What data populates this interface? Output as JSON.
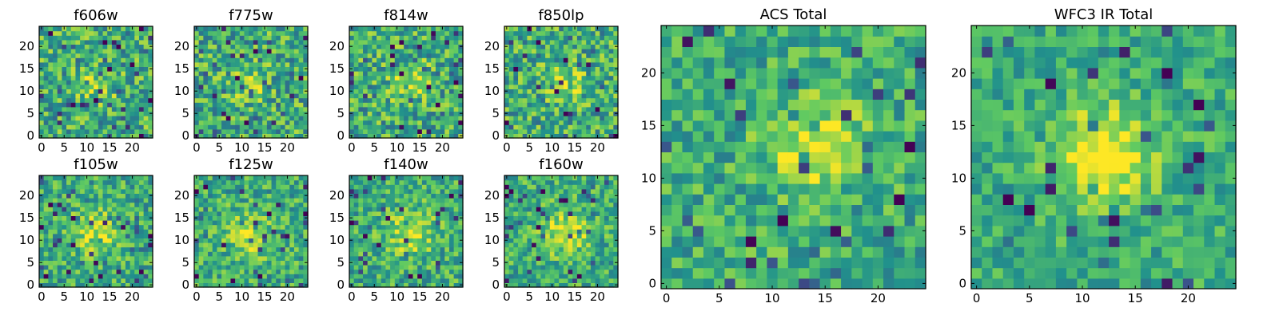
{
  "figure": {
    "description_free": true
  },
  "colormap": {
    "name": "viridis",
    "stops": [
      "#440154",
      "#3b528b",
      "#21918c",
      "#5ec962",
      "#fde725"
    ]
  },
  "chart_data": [
    {
      "type": "heatmap",
      "title": "f606w",
      "grid": [
        25,
        25
      ],
      "seed": 11,
      "peak": [
        12,
        11
      ],
      "peak_strength": 0.22,
      "peak_sigma": 3.0,
      "noise": 0.55,
      "xlim": [
        0,
        24
      ],
      "ylim": [
        0,
        24
      ],
      "xticks": [
        "0",
        "5",
        "10",
        "15",
        "20"
      ],
      "yticks": [
        "0",
        "5",
        "10",
        "15",
        "20"
      ]
    },
    {
      "type": "heatmap",
      "title": "f775w",
      "grid": [
        25,
        25
      ],
      "seed": 23,
      "peak": [
        12,
        12
      ],
      "peak_strength": 0.18,
      "peak_sigma": 3.0,
      "noise": 0.55,
      "xlim": [
        0,
        24
      ],
      "ylim": [
        0,
        24
      ],
      "xticks": [
        "0",
        "5",
        "10",
        "15",
        "20"
      ],
      "yticks": [
        "0",
        "5",
        "10",
        "15",
        "20"
      ]
    },
    {
      "type": "heatmap",
      "title": "f814w",
      "grid": [
        25,
        25
      ],
      "seed": 37,
      "peak": [
        13,
        12
      ],
      "peak_strength": 0.25,
      "peak_sigma": 3.0,
      "noise": 0.55,
      "xlim": [
        0,
        24
      ],
      "ylim": [
        0,
        24
      ],
      "xticks": [
        "0",
        "5",
        "10",
        "15",
        "20"
      ],
      "yticks": [
        "0",
        "5",
        "10",
        "15",
        "20"
      ]
    },
    {
      "type": "heatmap",
      "title": "f850lp",
      "grid": [
        25,
        25
      ],
      "seed": 41,
      "peak": [
        13,
        12
      ],
      "peak_strength": 0.2,
      "peak_sigma": 3.0,
      "noise": 0.55,
      "xlim": [
        0,
        24
      ],
      "ylim": [
        0,
        24
      ],
      "xticks": [
        "0",
        "5",
        "10",
        "15",
        "20"
      ],
      "yticks": [
        "0",
        "5",
        "10",
        "15",
        "20"
      ]
    },
    {
      "type": "heatmap",
      "title": "f105w",
      "grid": [
        25,
        25
      ],
      "seed": 53,
      "peak": [
        12,
        12
      ],
      "peak_strength": 0.3,
      "peak_sigma": 3.5,
      "noise": 0.45,
      "xlim": [
        0,
        24
      ],
      "ylim": [
        0,
        24
      ],
      "xticks": [
        "0",
        "5",
        "10",
        "15",
        "20"
      ],
      "yticks": [
        "0",
        "5",
        "10",
        "15",
        "20"
      ]
    },
    {
      "type": "heatmap",
      "title": "f125w",
      "grid": [
        25,
        25
      ],
      "seed": 67,
      "peak": [
        12,
        11
      ],
      "peak_strength": 0.3,
      "peak_sigma": 3.5,
      "noise": 0.45,
      "xlim": [
        0,
        24
      ],
      "ylim": [
        0,
        24
      ],
      "xticks": [
        "0",
        "5",
        "10",
        "15",
        "20"
      ],
      "yticks": [
        "0",
        "5",
        "10",
        "15",
        "20"
      ]
    },
    {
      "type": "heatmap",
      "title": "f140w",
      "grid": [
        25,
        25
      ],
      "seed": 79,
      "peak": [
        13,
        12
      ],
      "peak_strength": 0.3,
      "peak_sigma": 3.5,
      "noise": 0.45,
      "xlim": [
        0,
        24
      ],
      "ylim": [
        0,
        24
      ],
      "xticks": [
        "0",
        "5",
        "10",
        "15",
        "20"
      ],
      "yticks": [
        "0",
        "5",
        "10",
        "15",
        "20"
      ]
    },
    {
      "type": "heatmap",
      "title": "f160w",
      "grid": [
        25,
        25
      ],
      "seed": 83,
      "peak": [
        13,
        12
      ],
      "peak_strength": 0.32,
      "peak_sigma": 3.5,
      "noise": 0.45,
      "xlim": [
        0,
        24
      ],
      "ylim": [
        0,
        24
      ],
      "xticks": [
        "0",
        "5",
        "10",
        "15",
        "20"
      ],
      "yticks": [
        "0",
        "5",
        "10",
        "15",
        "20"
      ]
    },
    {
      "type": "heatmap",
      "title": "ACS Total",
      "grid": [
        25,
        25
      ],
      "seed": 97,
      "peak": [
        14,
        13
      ],
      "peak_strength": 0.38,
      "peak_sigma": 3.0,
      "noise": 0.42,
      "xlim": [
        0,
        24
      ],
      "ylim": [
        0,
        24
      ],
      "xticks": [
        "0",
        "5",
        "10",
        "15",
        "20"
      ],
      "yticks": [
        "0",
        "5",
        "10",
        "15",
        "20"
      ]
    },
    {
      "type": "heatmap",
      "title": "WFC3 IR Total",
      "grid": [
        25,
        25
      ],
      "seed": 101,
      "peak": [
        12,
        12
      ],
      "peak_strength": 0.45,
      "peak_sigma": 3.2,
      "noise": 0.35,
      "xlim": [
        0,
        24
      ],
      "ylim": [
        0,
        24
      ],
      "xticks": [
        "0",
        "5",
        "10",
        "15",
        "20"
      ],
      "yticks": [
        "0",
        "5",
        "10",
        "15",
        "20"
      ]
    }
  ]
}
